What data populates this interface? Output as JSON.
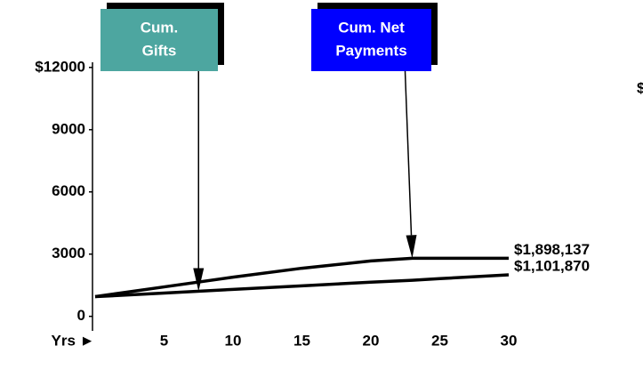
{
  "chart_data": {
    "type": "line",
    "x_label": "Yrs ►",
    "x": [
      0,
      5,
      10,
      15,
      20,
      23,
      25,
      30
    ],
    "xlim": [
      0,
      30
    ],
    "xticks": [
      5,
      10,
      15,
      20,
      25,
      30
    ],
    "ylim": [
      -700,
      12250
    ],
    "yticks": [
      0,
      3000,
      6000,
      9000,
      {
        "value": 12000,
        "label": "$12000"
      }
    ],
    "series": [
      {
        "color": "#000000",
        "end_label": "$1,898,137",
        "values": [
          950,
          1420,
          1890,
          2320,
          2670,
          2800,
          2800,
          2800
        ]
      },
      {
        "color": "#000000",
        "end_label": "$1,101,870",
        "values": [
          950,
          1120,
          1300,
          1470,
          1650,
          1740,
          1820,
          2000
        ]
      }
    ],
    "annotations": [
      {
        "text": [
          "Cum.",
          "Gifts"
        ],
        "color": "#4da6a0",
        "x": 7.5,
        "y": 1210
      },
      {
        "text": [
          "Cum. Net",
          "Payments"
        ],
        "color": "#0000ff",
        "x": 23,
        "y": 2800
      }
    ],
    "corner_text": "$"
  }
}
